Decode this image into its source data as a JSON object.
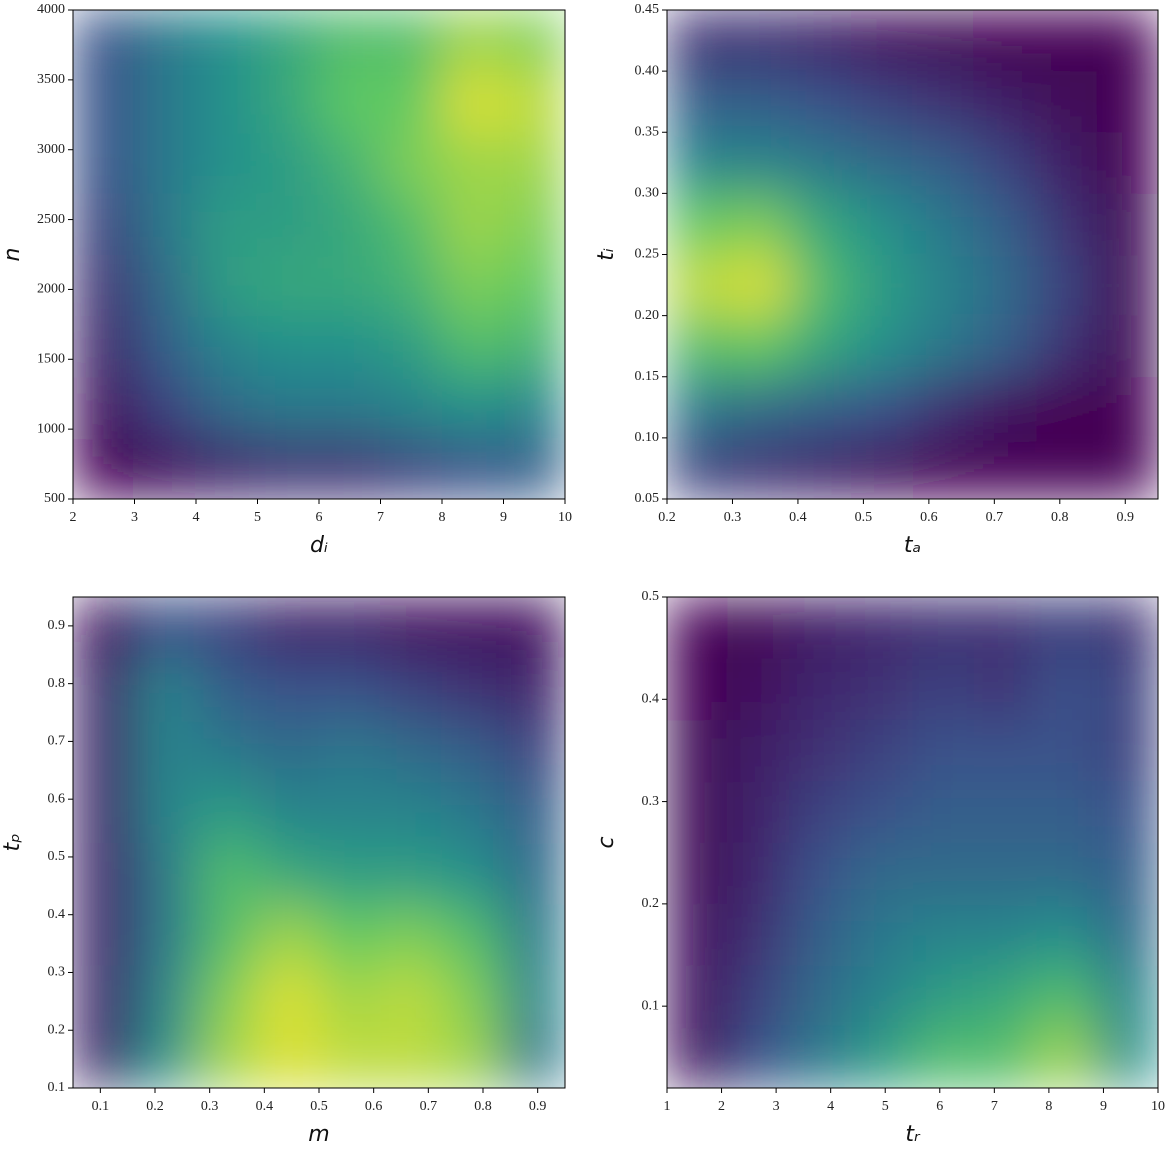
{
  "chart_data": [
    {
      "type": "heatmap",
      "xlabel": "dᵢ",
      "ylabel": "n",
      "xlim": [
        2,
        10
      ],
      "xticks": [
        2,
        3,
        4,
        5,
        6,
        7,
        8,
        9,
        10
      ],
      "ylim": [
        500,
        4000
      ],
      "yticks": [
        500,
        1000,
        1500,
        2000,
        2500,
        3000,
        3500,
        4000
      ],
      "colormap": [
        "#440154",
        "#3b528b",
        "#21918c",
        "#5ec962",
        "#fde725"
      ],
      "z": [
        [
          0.0,
          0.05,
          0.1,
          0.15,
          0.15,
          0.2,
          0.25,
          0.3
        ],
        [
          0.05,
          0.2,
          0.35,
          0.4,
          0.4,
          0.45,
          0.5,
          0.45
        ],
        [
          0.1,
          0.3,
          0.45,
          0.5,
          0.5,
          0.55,
          0.7,
          0.65
        ],
        [
          0.15,
          0.35,
          0.55,
          0.6,
          0.6,
          0.65,
          0.8,
          0.75
        ],
        [
          0.2,
          0.4,
          0.55,
          0.55,
          0.6,
          0.7,
          0.85,
          0.8
        ],
        [
          0.25,
          0.4,
          0.5,
          0.55,
          0.65,
          0.8,
          0.85,
          0.85
        ],
        [
          0.25,
          0.4,
          0.5,
          0.6,
          0.75,
          0.75,
          0.95,
          0.9
        ],
        [
          0.25,
          0.4,
          0.5,
          0.6,
          0.7,
          0.7,
          0.85,
          0.8
        ]
      ]
    },
    {
      "type": "heatmap",
      "xlabel": "tₐ",
      "ylabel": "tᵢ",
      "xlim": [
        0.2,
        0.95
      ],
      "xticks": [
        0.2,
        0.3,
        0.4,
        0.5,
        0.6,
        0.7,
        0.8,
        0.9
      ],
      "ylim": [
        0.05,
        0.45
      ],
      "yticks": [
        0.05,
        {
          "value": 0.1,
          "label": "0.10"
        },
        0.15,
        {
          "value": 0.2,
          "label": "0.20"
        },
        0.25,
        {
          "value": 0.3,
          "label": "0.30"
        },
        0.35,
        {
          "value": 0.4,
          "label": "0.40"
        },
        0.45
      ],
      "colormap": [
        "#440154",
        "#3b528b",
        "#21918c",
        "#5ec962",
        "#fde725"
      ],
      "z": [
        [
          0.2,
          0.15,
          0.1,
          0.05,
          0,
          0,
          0,
          0
        ],
        [
          0.4,
          0.35,
          0.3,
          0.25,
          0.15,
          0.05,
          0,
          0
        ],
        [
          0.7,
          0.75,
          0.6,
          0.5,
          0.4,
          0.3,
          0.15,
          0.02
        ],
        [
          0.9,
          0.95,
          0.7,
          0.55,
          0.45,
          0.35,
          0.2,
          0.02
        ],
        [
          0.75,
          0.8,
          0.6,
          0.5,
          0.4,
          0.3,
          0.15,
          0.02
        ],
        [
          0.45,
          0.45,
          0.4,
          0.35,
          0.3,
          0.2,
          0.08,
          0
        ],
        [
          0.3,
          0.3,
          0.25,
          0.2,
          0.15,
          0.08,
          0.02,
          0
        ],
        [
          0.15,
          0.15,
          0.1,
          0.05,
          0.02,
          0,
          0,
          0
        ]
      ]
    },
    {
      "type": "heatmap",
      "xlabel": "m",
      "ylabel": "tₚ",
      "xlim": [
        0.05,
        0.95
      ],
      "xticks": [
        0.1,
        0.2,
        0.3,
        0.4,
        0.5,
        0.6,
        0.7,
        0.8,
        0.9
      ],
      "ylim": [
        0.1,
        0.95
      ],
      "yticks": [
        0.1,
        0.2,
        0.3,
        0.4,
        0.5,
        0.6,
        0.7,
        0.8,
        0.9
      ],
      "colormap": [
        "#440154",
        "#3b528b",
        "#21918c",
        "#5ec962",
        "#fde725"
      ],
      "z": [
        [
          0.1,
          0.5,
          0.85,
          0.95,
          0.9,
          0.9,
          0.85,
          0.4
        ],
        [
          0.1,
          0.45,
          0.8,
          0.95,
          0.85,
          0.9,
          0.8,
          0.45
        ],
        [
          0.1,
          0.4,
          0.7,
          0.85,
          0.75,
          0.8,
          0.7,
          0.4
        ],
        [
          0.1,
          0.4,
          0.7,
          0.6,
          0.55,
          0.55,
          0.5,
          0.35
        ],
        [
          0.1,
          0.45,
          0.55,
          0.45,
          0.45,
          0.45,
          0.4,
          0.3
        ],
        [
          0.1,
          0.45,
          0.4,
          0.35,
          0.4,
          0.35,
          0.3,
          0.2
        ],
        [
          0.1,
          0.45,
          0.3,
          0.25,
          0.25,
          0.2,
          0.15,
          0.1
        ],
        [
          0.05,
          0.25,
          0.2,
          0.1,
          0.1,
          0.05,
          0.05,
          0.05
        ]
      ]
    },
    {
      "type": "heatmap",
      "xlabel": "tᵣ",
      "ylabel": "c",
      "xlim": [
        1,
        10
      ],
      "xticks": [
        1,
        2,
        3,
        4,
        5,
        6,
        7,
        8,
        9,
        10
      ],
      "ylim": [
        0.02,
        0.5
      ],
      "yticks": [
        0.1,
        0.2,
        0.3,
        0.4,
        0.5
      ],
      "colormap": [
        "#440154",
        "#3b528b",
        "#21918c",
        "#5ec962",
        "#fde725"
      ],
      "z": [
        [
          0.05,
          0.25,
          0.4,
          0.55,
          0.7,
          0.7,
          0.85,
          0.5
        ],
        [
          0.05,
          0.2,
          0.35,
          0.45,
          0.55,
          0.6,
          0.7,
          0.45
        ],
        [
          0.05,
          0.15,
          0.3,
          0.4,
          0.45,
          0.45,
          0.5,
          0.35
        ],
        [
          0.02,
          0.12,
          0.25,
          0.35,
          0.35,
          0.35,
          0.35,
          0.3
        ],
        [
          0.02,
          0.1,
          0.2,
          0.25,
          0.3,
          0.3,
          0.3,
          0.25
        ],
        [
          0.02,
          0.08,
          0.15,
          0.2,
          0.25,
          0.25,
          0.25,
          0.2
        ],
        [
          0.0,
          0.05,
          0.12,
          0.15,
          0.2,
          0.15,
          0.25,
          0.2
        ],
        [
          0.0,
          0.02,
          0.08,
          0.12,
          0.15,
          0.15,
          0.2,
          0.15
        ]
      ]
    }
  ]
}
